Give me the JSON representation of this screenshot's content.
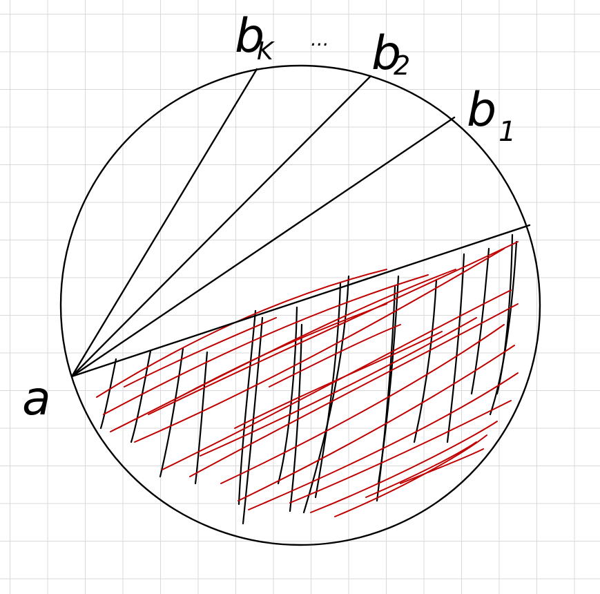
{
  "labels": {
    "point_a": "a",
    "point_bk": "b",
    "point_bk_sub": "K",
    "dots": "...",
    "point_b2": "b",
    "point_b2_sub": "2",
    "point_b1": "b",
    "point_b1_sub": "1"
  },
  "colors": {
    "ink": "#000000",
    "hatch_red": "#c00000",
    "grid": "#d9d9d9",
    "paper": "#ffffff"
  }
}
